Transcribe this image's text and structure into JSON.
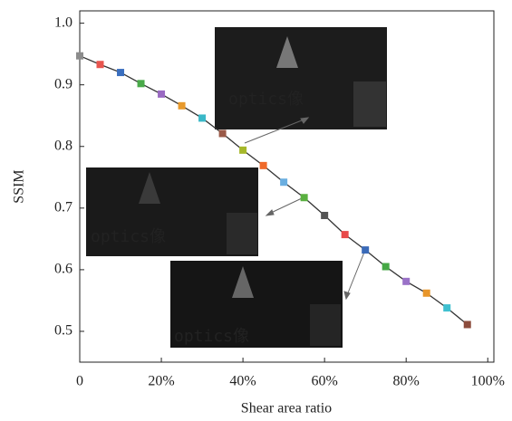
{
  "chart_data": {
    "type": "line",
    "x_label": "Shear area ratio",
    "y_label": "SSIM",
    "x": [
      0,
      5,
      10,
      15,
      20,
      25,
      30,
      35,
      40,
      45,
      50,
      55,
      60,
      65,
      70,
      75,
      80,
      85,
      90,
      95
    ],
    "series": [
      {
        "color": "#333333",
        "marker_colors": [
          "#8c8c8c",
          "#e8554e",
          "#3a6fbf",
          "#4aaa4a",
          "#9a6ac2",
          "#e89a2c",
          "#3ab8c8",
          "#9a5a48",
          "#a6b82a",
          "#f06a2a",
          "#6aaee0",
          "#5ab040",
          "#555555",
          "#e84a4a",
          "#3a6ab8",
          "#46a846",
          "#9a72c8",
          "#e8962a",
          "#40c0d0",
          "#8c4c3c"
        ],
        "values": [
          0.947,
          0.933,
          0.92,
          0.902,
          0.885,
          0.866,
          0.846,
          0.821,
          0.794,
          0.769,
          0.742,
          0.717,
          0.688,
          0.657,
          0.632,
          0.605,
          0.581,
          0.562,
          0.538,
          0.511
        ]
      }
    ],
    "xlim": [
      0,
      101.5
    ],
    "ylim": [
      0.45,
      1.02
    ],
    "xticks": [
      0,
      {
        "value": 20,
        "label": "20%"
      },
      {
        "value": 40,
        "label": "40%"
      },
      {
        "value": 60,
        "label": "60%"
      },
      {
        "value": 80,
        "label": "80%"
      },
      {
        "value": 100,
        "label": "100%"
      }
    ],
    "yticks": [
      0.5,
      0.6,
      0.7,
      0.8,
      0.9,
      {
        "value": 1,
        "label": "1.0"
      }
    ],
    "inset_labels": [
      "optics像",
      "optics像",
      "optics像"
    ]
  }
}
